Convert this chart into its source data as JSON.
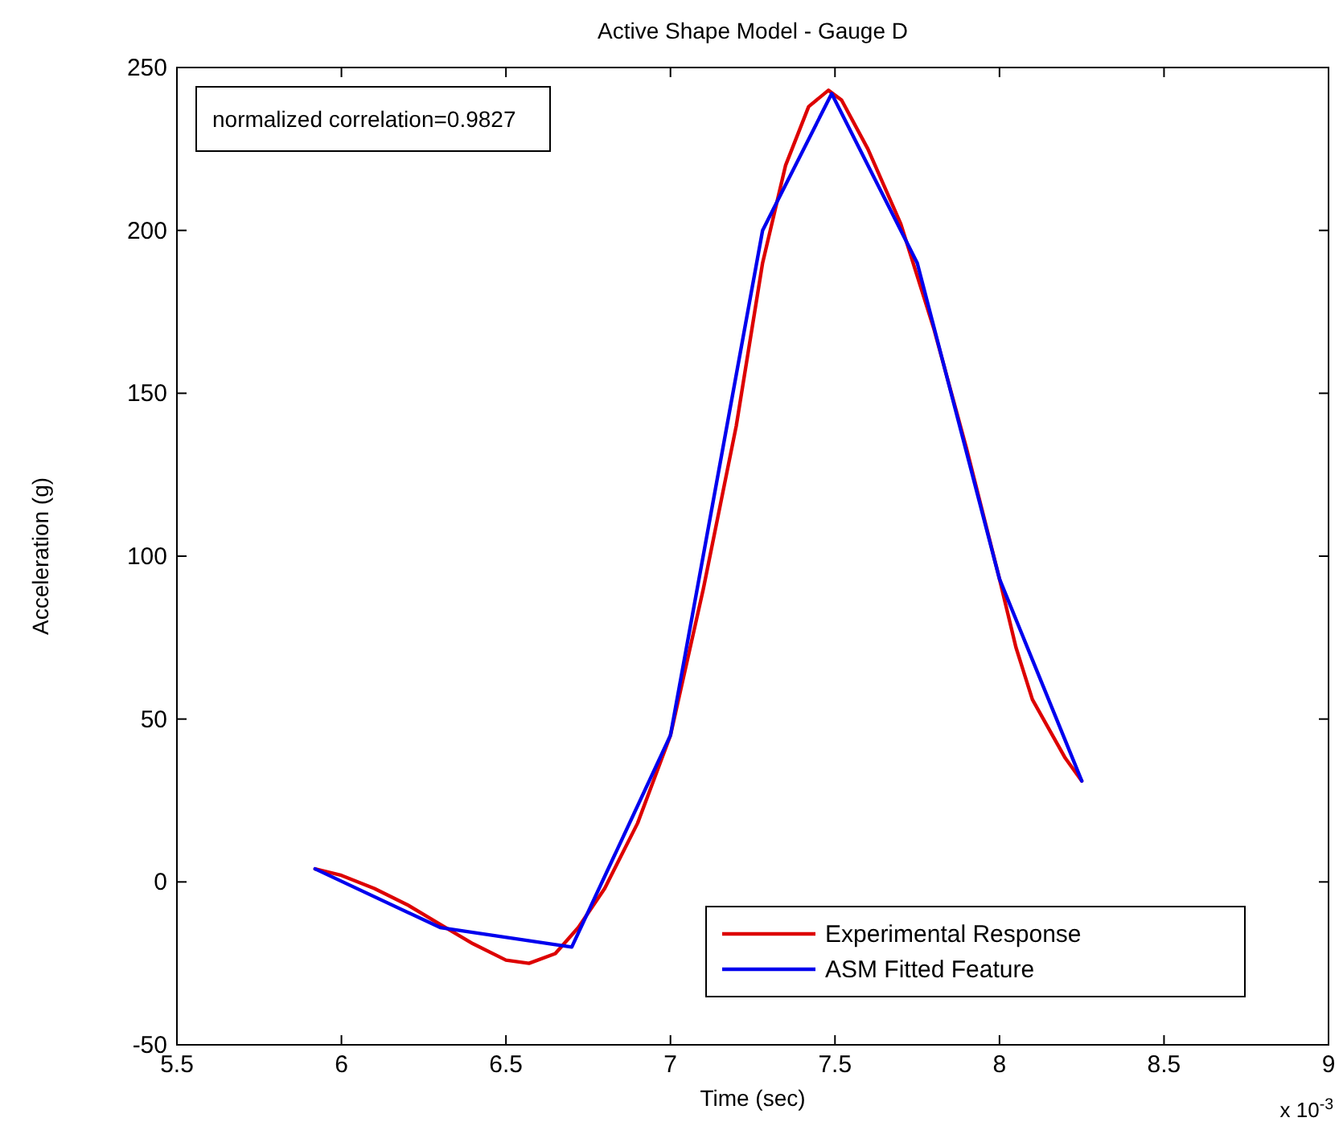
{
  "chart_data": {
    "type": "line",
    "title": "Active Shape Model - Gauge D",
    "xlabel": "Time (sec)",
    "ylabel": "Acceleration (g)",
    "annotations": [
      "normalized correlation=0.9827",
      "x 10$^{-3}$"
    ],
    "xlim": [
      5.5,
      9
    ],
    "xticks": [
      5.5,
      6,
      6.5,
      7,
      7.5,
      8,
      8.5,
      9
    ],
    "ylim": [
      -50,
      250
    ],
    "yticks": [
      -50,
      0,
      50,
      100,
      150,
      200,
      250
    ],
    "grid": false,
    "legend": "bottom right",
    "marker": "none",
    "line_style": "solid",
    "series": [
      {
        "name": "Experimental Response",
        "color": "#dd0000",
        "x": [
          5.92,
          6.0,
          6.1,
          6.2,
          6.3,
          6.4,
          6.5,
          6.57,
          6.65,
          6.72,
          6.8,
          6.9,
          7.0,
          7.1,
          7.2,
          7.28,
          7.35,
          7.42,
          7.48,
          7.52,
          7.6,
          7.7,
          7.8,
          7.9,
          8.0,
          8.05,
          8.1,
          8.2,
          8.25
        ],
        "values": [
          4,
          2,
          -2,
          -7,
          -13,
          -19,
          -24,
          -25,
          -22,
          -14,
          -2,
          18,
          45,
          90,
          140,
          190,
          220,
          238,
          243,
          240,
          225,
          202,
          170,
          133,
          93,
          72,
          56,
          38,
          31
        ]
      },
      {
        "name": "ASM Fitted Feature",
        "color": "#0000ee",
        "x": [
          5.92,
          6.3,
          6.7,
          7.0,
          7.28,
          7.49,
          7.75,
          8.0,
          8.25
        ],
        "values": [
          4,
          -14,
          -20,
          45,
          200,
          242,
          190,
          93,
          31
        ]
      }
    ]
  }
}
